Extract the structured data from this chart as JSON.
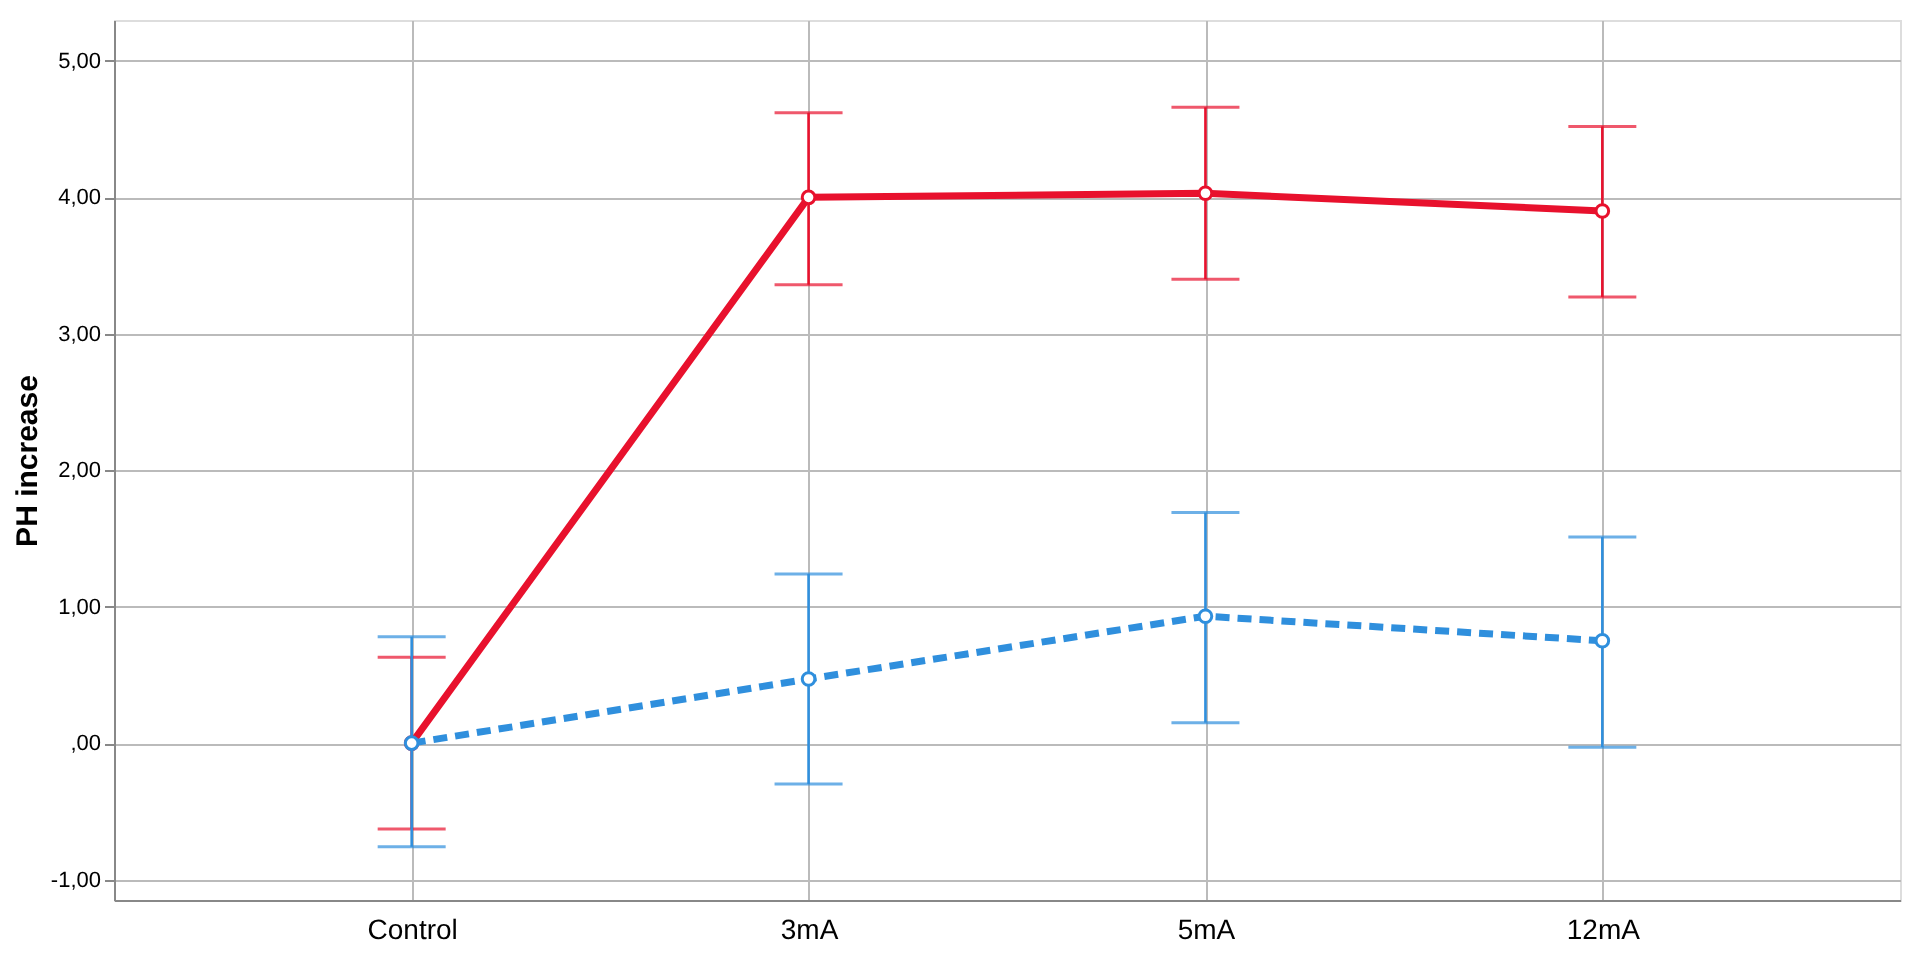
{
  "chart_data": {
    "type": "line",
    "ylabel": "PH increase",
    "categories": [
      "Control",
      "3mA",
      "5mA",
      "12mA"
    ],
    "series": [
      {
        "color": "#e8112d",
        "line_style": "solid",
        "values": [
          0,
          4.0,
          4.03,
          3.9
        ],
        "errors": [
          [
            -0.63,
            0.63
          ],
          [
            3.36,
            4.62
          ],
          [
            3.4,
            4.66
          ],
          [
            3.27,
            4.52
          ]
        ]
      },
      {
        "color": "#2f8fdd",
        "line_style": "dashed",
        "values": [
          0,
          0.47,
          0.93,
          0.75
        ],
        "errors": [
          [
            -0.76,
            0.78
          ],
          [
            -0.3,
            1.24
          ],
          [
            0.15,
            1.69
          ],
          [
            -0.03,
            1.51
          ]
        ]
      }
    ],
    "ylim": [
      -1.15,
      5.3
    ],
    "yticks": [
      {
        "value": -1,
        "label": "-1,00"
      },
      {
        "value": 0,
        "label": ",00"
      },
      {
        "value": 1,
        "label": "1,00"
      },
      {
        "value": 2,
        "label": "2,00"
      },
      {
        "value": 3,
        "label": "3,00"
      },
      {
        "value": 4,
        "label": "4,00"
      },
      {
        "value": 5,
        "label": "5,00"
      }
    ],
    "grid": true,
    "marker": "circle"
  }
}
